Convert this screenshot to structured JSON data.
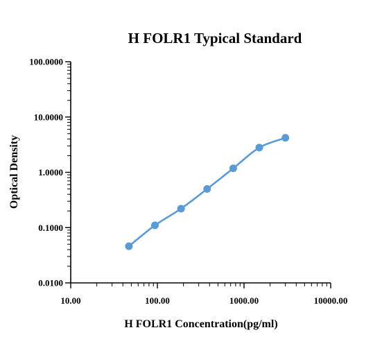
{
  "chart_data": {
    "type": "scatter",
    "title": "H FOLR1 Typical Standard",
    "xlabel": "H FOLR1 Concentration(pg/ml)",
    "ylabel": "Optical Density",
    "x_scale": "log",
    "y_scale": "log",
    "xlim": [
      10,
      10000
    ],
    "ylim": [
      0.01,
      100
    ],
    "x_ticks": [
      10,
      100,
      1000,
      10000
    ],
    "x_tick_labels": [
      "10.00",
      "100.00",
      "1000.00",
      "10000.00"
    ],
    "y_ticks": [
      0.01,
      0.1,
      1,
      10,
      100
    ],
    "y_tick_labels": [
      "0.0100",
      "0.1000",
      "1.0000",
      "10.0000",
      "100.0000"
    ],
    "grid": false,
    "legend": "none",
    "series": [
      {
        "color": "#5b9bd5",
        "x": [
          46.9,
          93.75,
          187.5,
          375,
          750,
          1500,
          3000
        ],
        "y": [
          0.046,
          0.11,
          0.22,
          0.5,
          1.18,
          2.8,
          4.2
        ]
      }
    ]
  }
}
